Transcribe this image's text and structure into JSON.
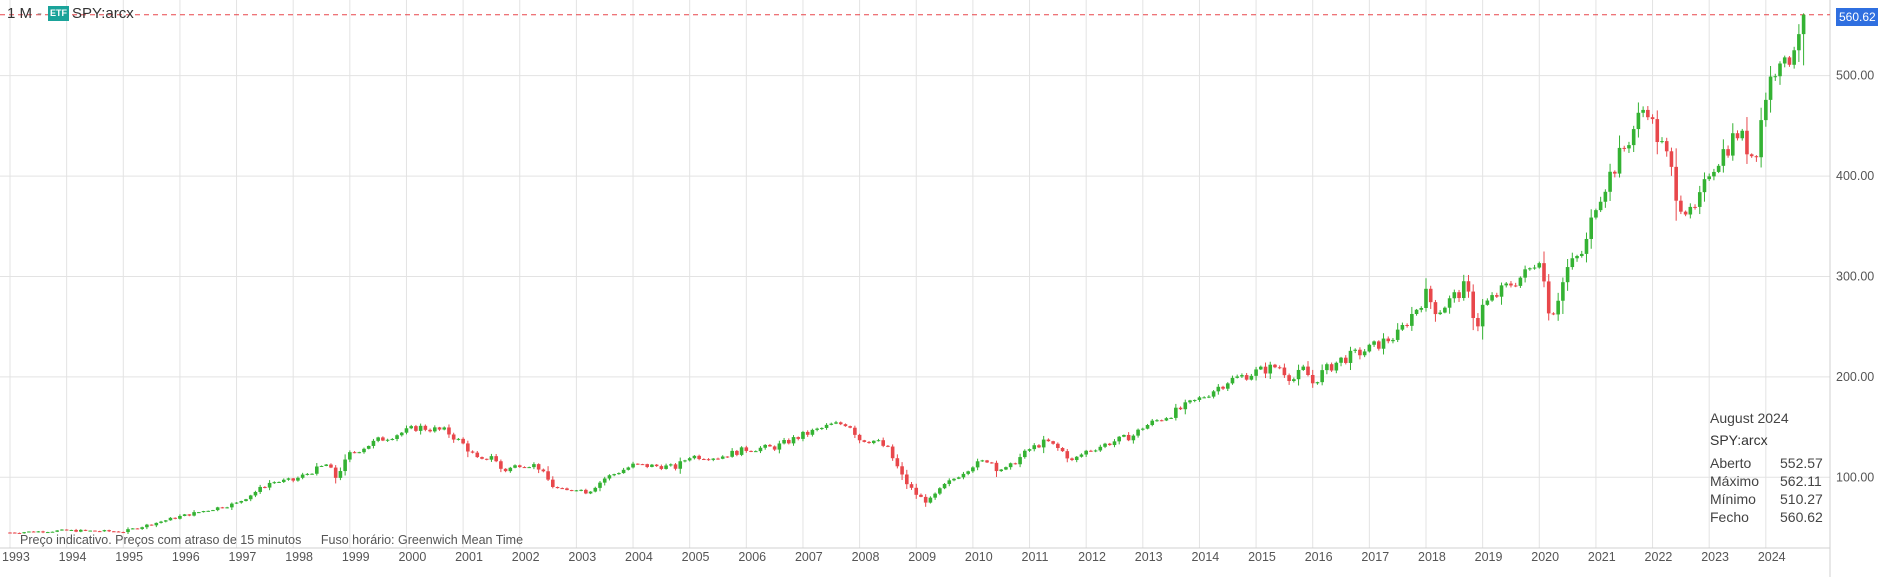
{
  "header": {
    "interval": "1 M",
    "etf_badge": "ETF",
    "symbol": "SPY:arcx"
  },
  "last_price_label": "560.62",
  "tooltip": {
    "title": "August 2024",
    "symbol": "SPY:arcx",
    "rows": [
      {
        "k": "Aberto",
        "v": "552.57"
      },
      {
        "k": "Máximo",
        "v": "562.11"
      },
      {
        "k": "Mínimo",
        "v": "510.27"
      },
      {
        "k": "Fecho",
        "v": "560.62"
      }
    ]
  },
  "disclaimer": {
    "delay": "Preço indicativo. Preços com atraso de 15 minutos",
    "timezone": "Fuso horário: Greenwich Mean Time"
  },
  "colors": {
    "up": "#34b233",
    "down": "#e8474b",
    "last_price_line": "#e8474b",
    "price_box": "#2f6fe0",
    "grid": "#e3e3e3"
  },
  "chart_data": {
    "type": "candlestick",
    "interval": "1 M",
    "symbol": "SPY:arcx",
    "x_ticks": [
      "1993",
      "1994",
      "1995",
      "1996",
      "1997",
      "1998",
      "1999",
      "2000",
      "2001",
      "2002",
      "2003",
      "2004",
      "2005",
      "2006",
      "2007",
      "2008",
      "2009",
      "2010",
      "2011",
      "2012",
      "2013",
      "2014",
      "2015",
      "2016",
      "2017",
      "2018",
      "2019",
      "2020",
      "2021",
      "2022",
      "2023",
      "2024"
    ],
    "y_ticks": [
      "100.00",
      "200.00",
      "300.00",
      "400.00",
      "500.00"
    ],
    "y_tick_values": [
      100,
      200,
      300,
      400,
      500
    ],
    "ylim": [
      38,
      578
    ],
    "xlim": [
      1993.0,
      2025.0
    ],
    "last_price": 560.62,
    "grid": true,
    "close_anchors": [
      [
        1993.0,
        45
      ],
      [
        1994.0,
        47
      ],
      [
        1995.0,
        46
      ],
      [
        1996.0,
        61
      ],
      [
        1997.0,
        74
      ],
      [
        1997.6,
        95
      ],
      [
        1998.0,
        97
      ],
      [
        1998.6,
        113
      ],
      [
        1998.75,
        100
      ],
      [
        1999.0,
        123
      ],
      [
        1999.5,
        137
      ],
      [
        2000.0,
        146
      ],
      [
        2000.2,
        150
      ],
      [
        2000.7,
        146
      ],
      [
        2001.0,
        133
      ],
      [
        2001.3,
        115
      ],
      [
        2001.5,
        122
      ],
      [
        2001.7,
        106
      ],
      [
        2002.0,
        113
      ],
      [
        2002.3,
        112
      ],
      [
        2002.6,
        90
      ],
      [
        2002.8,
        86
      ],
      [
        2003.0,
        89
      ],
      [
        2003.2,
        85
      ],
      [
        2003.5,
        99
      ],
      [
        2004.0,
        112
      ],
      [
        2004.5,
        111
      ],
      [
        2004.75,
        110
      ],
      [
        2005.0,
        121
      ],
      [
        2005.5,
        120
      ],
      [
        2006.0,
        128
      ],
      [
        2006.5,
        130
      ],
      [
        2007.0,
        142
      ],
      [
        2007.5,
        152
      ],
      [
        2007.8,
        154
      ],
      [
        2008.0,
        138
      ],
      [
        2008.3,
        136
      ],
      [
        2008.5,
        128
      ],
      [
        2008.8,
        96
      ],
      [
        2009.0,
        83
      ],
      [
        2009.2,
        75
      ],
      [
        2009.5,
        92
      ],
      [
        2010.0,
        112
      ],
      [
        2010.3,
        118
      ],
      [
        2010.4,
        109
      ],
      [
        2010.6,
        108
      ],
      [
        2011.0,
        128
      ],
      [
        2011.3,
        136
      ],
      [
        2011.6,
        125
      ],
      [
        2011.75,
        116
      ],
      [
        2012.0,
        126
      ],
      [
        2012.5,
        136
      ],
      [
        2012.85,
        142
      ],
      [
        2013.0,
        150
      ],
      [
        2013.5,
        163
      ],
      [
        2014.0,
        178
      ],
      [
        2014.5,
        196
      ],
      [
        2015.0,
        205
      ],
      [
        2015.4,
        211
      ],
      [
        2015.65,
        197
      ],
      [
        2015.85,
        208
      ],
      [
        2016.0,
        194
      ],
      [
        2016.2,
        206
      ],
      [
        2016.5,
        217
      ],
      [
        2017.0,
        228
      ],
      [
        2017.5,
        242
      ],
      [
        2018.0,
        282
      ],
      [
        2018.2,
        265
      ],
      [
        2018.7,
        290
      ],
      [
        2018.9,
        250
      ],
      [
        2019.0,
        270
      ],
      [
        2019.5,
        293
      ],
      [
        2019.8,
        304
      ],
      [
        2020.0,
        321
      ],
      [
        2020.2,
        258
      ],
      [
        2020.5,
        308
      ],
      [
        2020.8,
        326
      ],
      [
        2021.0,
        374
      ],
      [
        2021.5,
        428
      ],
      [
        2021.9,
        474
      ],
      [
        2022.0,
        450
      ],
      [
        2022.3,
        412
      ],
      [
        2022.45,
        377
      ],
      [
        2022.7,
        358
      ],
      [
        2022.9,
        385
      ],
      [
        2023.0,
        406
      ],
      [
        2023.5,
        443
      ],
      [
        2023.8,
        418
      ],
      [
        2024.0,
        482
      ],
      [
        2024.25,
        523
      ],
      [
        2024.35,
        503
      ],
      [
        2024.45,
        527
      ],
      [
        2024.6,
        550
      ],
      [
        2024.67,
        560.62
      ]
    ]
  }
}
